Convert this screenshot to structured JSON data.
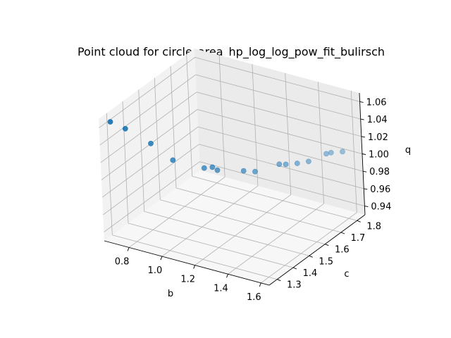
{
  "chart_data": {
    "type": "scatter",
    "projection": "3d",
    "title": "Point cloud for circle_area_hp_log_log_pow_fit_bulirsch",
    "xlabel": "b",
    "ylabel": "c",
    "zlabel": "q",
    "xlim": [
      0.65,
      1.65
    ],
    "ylim": [
      1.25,
      1.85
    ],
    "zlim": [
      0.93,
      1.07
    ],
    "xticks": [
      "0.8",
      "1.0",
      "1.2",
      "1.4",
      "1.6"
    ],
    "yticks": [
      "1.3",
      "1.4",
      "1.5",
      "1.6",
      "1.7",
      "1.8"
    ],
    "zticks": [
      "0.94",
      "0.96",
      "0.98",
      "1.00",
      "1.02",
      "1.04",
      "1.06"
    ],
    "grid": true,
    "marker_color": "#1f77b4",
    "points": [
      {
        "b": 0.67,
        "c": 1.3,
        "q": 1.061
      },
      {
        "b": 0.74,
        "c": 1.32,
        "q": 1.054
      },
      {
        "b": 0.72,
        "c": 1.49,
        "q": 1.013
      },
      {
        "b": 0.82,
        "c": 1.52,
        "q": 0.995
      },
      {
        "b": 0.98,
        "c": 1.55,
        "q": 0.99
      },
      {
        "b": 1.0,
        "c": 1.58,
        "q": 0.988
      },
      {
        "b": 1.03,
        "c": 1.58,
        "q": 0.986
      },
      {
        "b": 1.15,
        "c": 1.62,
        "q": 0.986
      },
      {
        "b": 1.2,
        "c": 1.64,
        "q": 0.985
      },
      {
        "b": 1.29,
        "c": 1.7,
        "q": 0.99
      },
      {
        "b": 1.32,
        "c": 1.71,
        "q": 0.99
      },
      {
        "b": 1.37,
        "c": 1.73,
        "q": 0.991
      },
      {
        "b": 1.42,
        "c": 1.75,
        "q": 0.993
      },
      {
        "b": 1.49,
        "c": 1.79,
        "q": 1.0
      },
      {
        "b": 1.51,
        "c": 1.8,
        "q": 1.001
      },
      {
        "b": 1.56,
        "c": 1.82,
        "q": 1.002
      }
    ]
  }
}
